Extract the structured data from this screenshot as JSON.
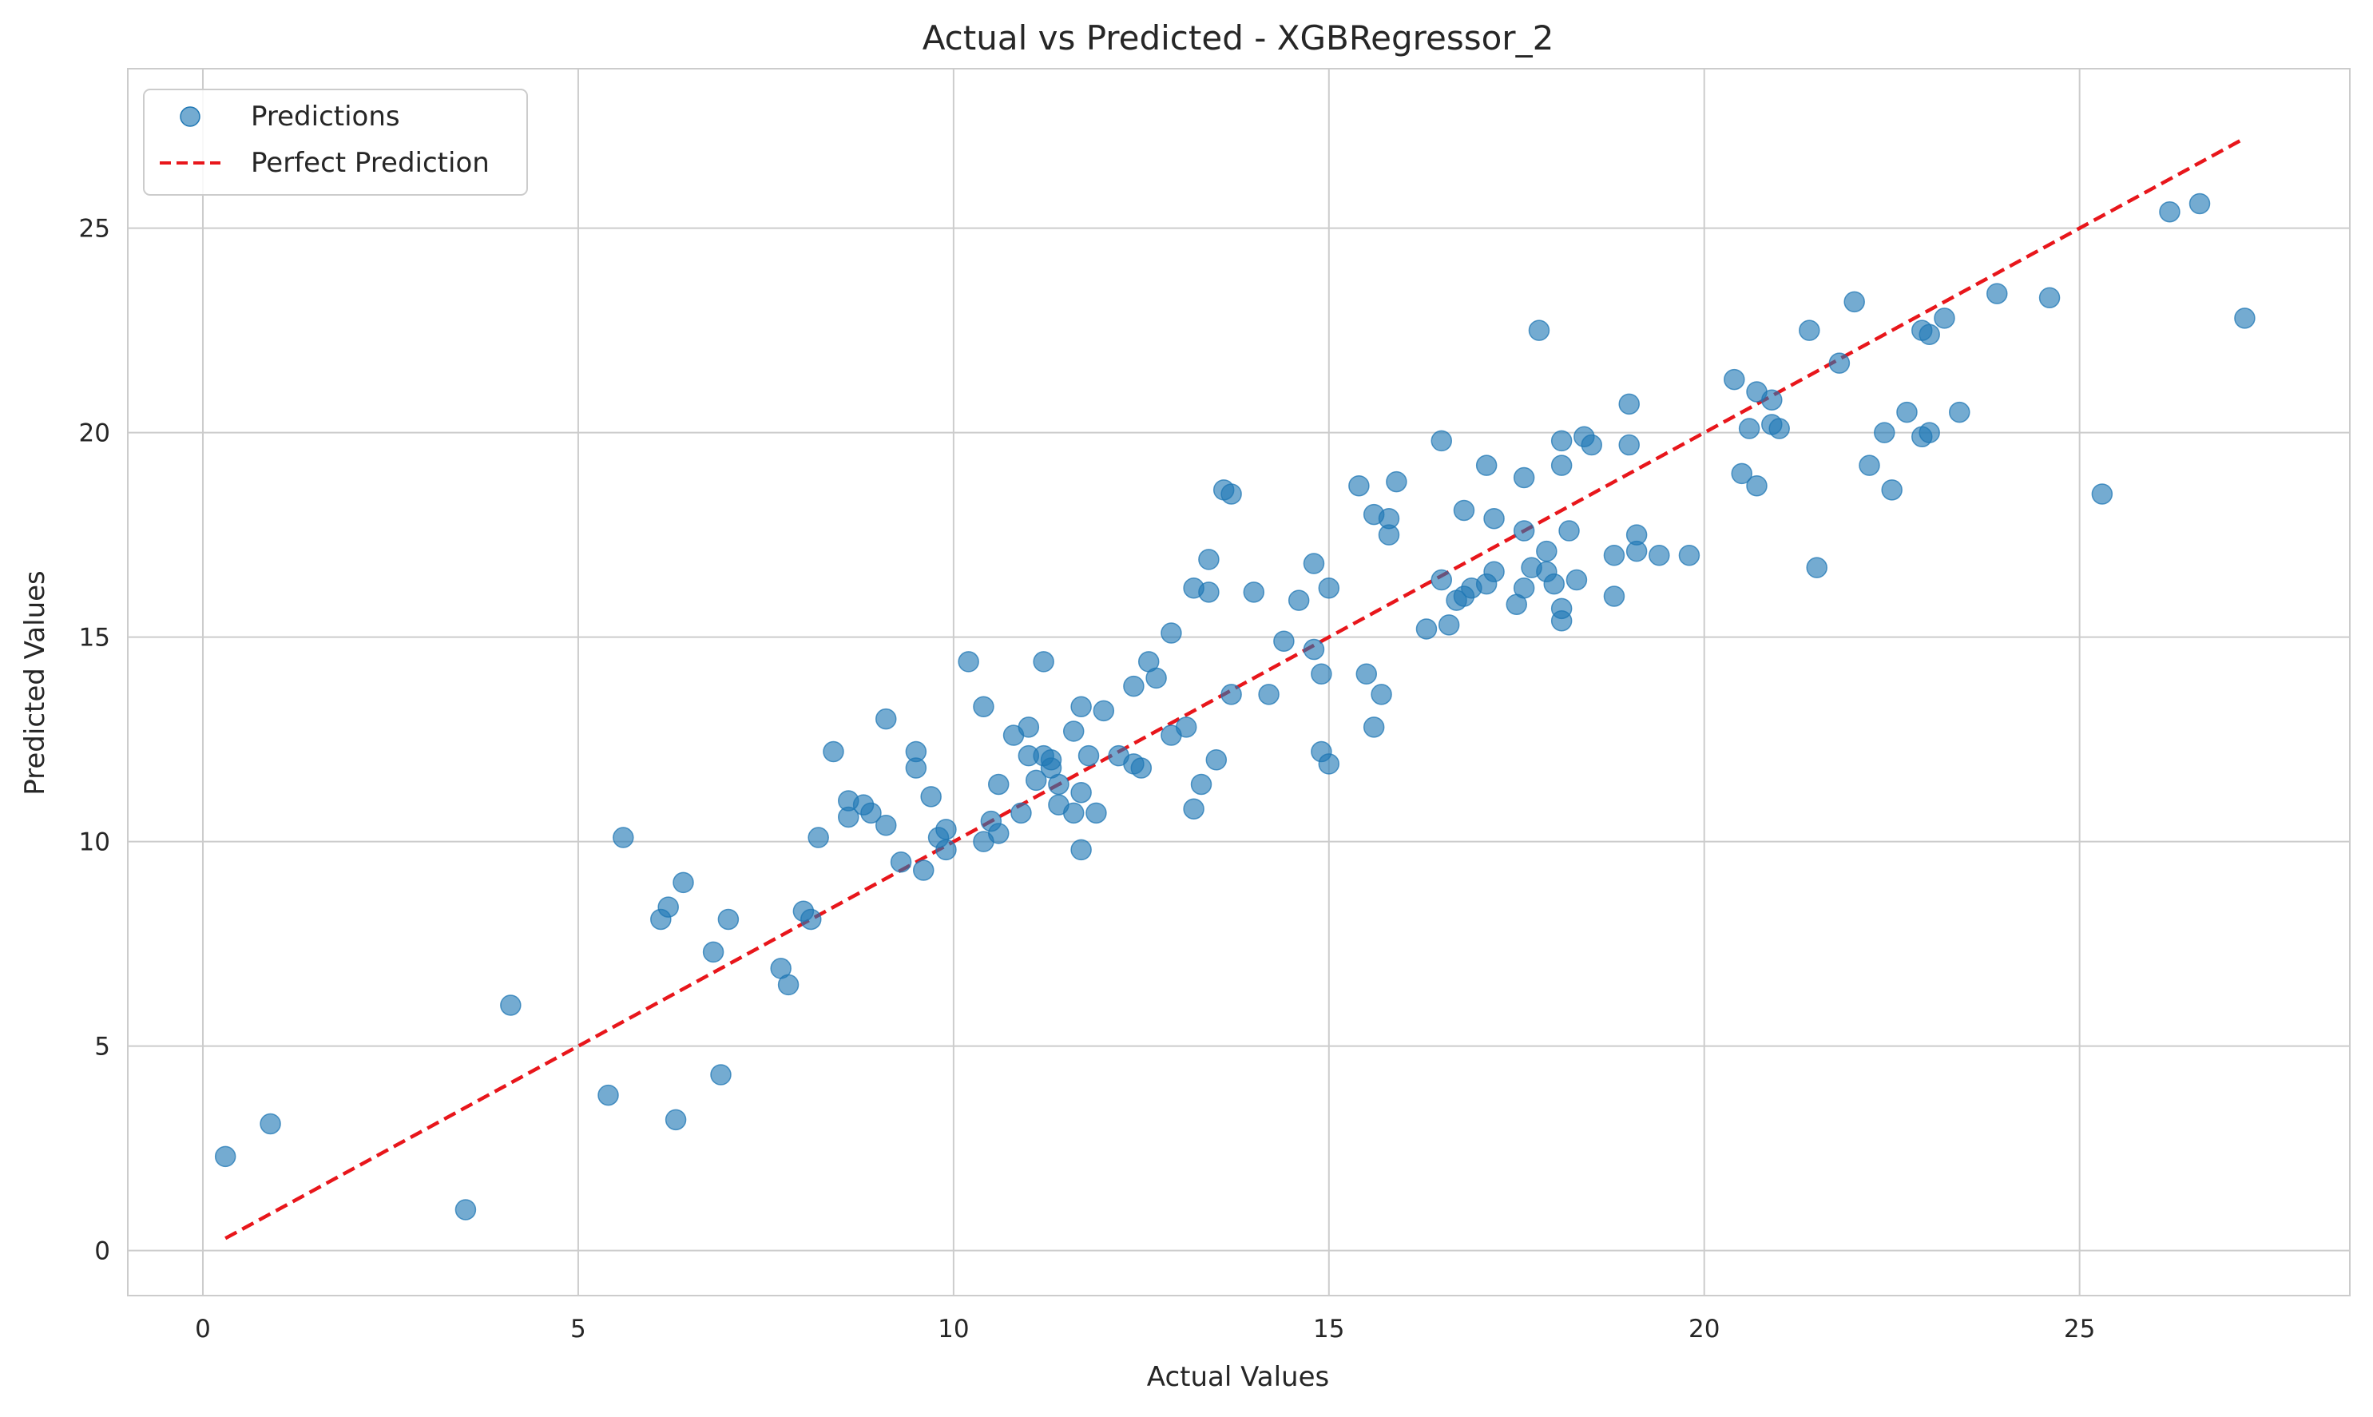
{
  "chart_data": {
    "type": "scatter",
    "title": "Actual vs Predicted - XGBRegressor_2",
    "xlabel": "Actual Values",
    "ylabel": "Predicted Values",
    "xlim": [
      -1.0,
      28.6
    ],
    "ylim": [
      -1.1,
      28.9
    ],
    "xticks": [
      0,
      5,
      10,
      15,
      20,
      25
    ],
    "yticks": [
      0,
      5,
      10,
      15,
      20,
      25
    ],
    "grid": true,
    "legend_position": "top-left",
    "colors": {
      "points": "#1f77b4",
      "line": "#e8161b",
      "grid": "#cccccc",
      "frame": "#cccccc"
    },
    "series": [
      {
        "name": "Predictions",
        "type": "scatter",
        "points": [
          [
            0.3,
            2.3
          ],
          [
            0.9,
            3.1
          ],
          [
            3.5,
            1.0
          ],
          [
            4.1,
            6.0
          ],
          [
            5.4,
            3.8
          ],
          [
            5.6,
            10.1
          ],
          [
            6.1,
            8.1
          ],
          [
            6.2,
            8.4
          ],
          [
            6.3,
            3.2
          ],
          [
            6.4,
            9.0
          ],
          [
            6.8,
            7.3
          ],
          [
            6.9,
            4.3
          ],
          [
            7.0,
            8.1
          ],
          [
            7.7,
            6.9
          ],
          [
            7.8,
            6.5
          ],
          [
            8.0,
            8.3
          ],
          [
            8.1,
            8.1
          ],
          [
            8.2,
            10.1
          ],
          [
            8.4,
            12.2
          ],
          [
            8.6,
            11.0
          ],
          [
            8.6,
            10.6
          ],
          [
            8.8,
            10.9
          ],
          [
            8.9,
            10.7
          ],
          [
            9.1,
            13.0
          ],
          [
            9.1,
            10.4
          ],
          [
            9.3,
            9.5
          ],
          [
            9.5,
            11.8
          ],
          [
            9.5,
            12.2
          ],
          [
            9.6,
            9.3
          ],
          [
            9.7,
            11.1
          ],
          [
            9.8,
            10.1
          ],
          [
            9.9,
            10.3
          ],
          [
            9.9,
            9.8
          ],
          [
            10.2,
            14.4
          ],
          [
            10.4,
            10.0
          ],
          [
            10.4,
            13.3
          ],
          [
            10.5,
            10.5
          ],
          [
            10.6,
            11.4
          ],
          [
            10.6,
            10.2
          ],
          [
            10.8,
            12.6
          ],
          [
            10.9,
            10.7
          ],
          [
            11.0,
            12.8
          ],
          [
            11.0,
            12.1
          ],
          [
            11.1,
            11.5
          ],
          [
            11.2,
            14.4
          ],
          [
            11.2,
            12.1
          ],
          [
            11.3,
            11.8
          ],
          [
            11.3,
            12.0
          ],
          [
            11.4,
            11.4
          ],
          [
            11.4,
            10.9
          ],
          [
            11.6,
            12.7
          ],
          [
            11.6,
            10.7
          ],
          [
            11.7,
            13.3
          ],
          [
            11.7,
            9.8
          ],
          [
            11.7,
            11.2
          ],
          [
            11.8,
            12.1
          ],
          [
            11.9,
            10.7
          ],
          [
            12.0,
            13.2
          ],
          [
            12.2,
            12.1
          ],
          [
            12.4,
            11.9
          ],
          [
            12.4,
            13.8
          ],
          [
            12.5,
            11.8
          ],
          [
            12.6,
            14.4
          ],
          [
            12.7,
            14.0
          ],
          [
            12.9,
            15.1
          ],
          [
            12.9,
            12.6
          ],
          [
            13.1,
            12.8
          ],
          [
            13.2,
            10.8
          ],
          [
            13.2,
            16.2
          ],
          [
            13.3,
            11.4
          ],
          [
            13.4,
            16.9
          ],
          [
            13.4,
            16.1
          ],
          [
            13.5,
            12.0
          ],
          [
            13.6,
            18.6
          ],
          [
            13.7,
            18.5
          ],
          [
            13.7,
            13.6
          ],
          [
            14.0,
            16.1
          ],
          [
            14.2,
            13.6
          ],
          [
            14.4,
            14.9
          ],
          [
            14.6,
            15.9
          ],
          [
            14.8,
            16.8
          ],
          [
            14.8,
            14.7
          ],
          [
            14.9,
            14.1
          ],
          [
            14.9,
            12.2
          ],
          [
            15.0,
            16.2
          ],
          [
            15.0,
            11.9
          ],
          [
            15.4,
            18.7
          ],
          [
            15.5,
            14.1
          ],
          [
            15.6,
            18.0
          ],
          [
            15.6,
            12.8
          ],
          [
            15.7,
            13.6
          ],
          [
            15.8,
            17.9
          ],
          [
            15.8,
            17.5
          ],
          [
            15.9,
            18.8
          ],
          [
            16.3,
            15.2
          ],
          [
            16.5,
            19.8
          ],
          [
            16.5,
            16.4
          ],
          [
            16.6,
            15.3
          ],
          [
            16.7,
            15.9
          ],
          [
            16.8,
            16.0
          ],
          [
            16.8,
            18.1
          ],
          [
            16.9,
            16.2
          ],
          [
            17.1,
            19.2
          ],
          [
            17.1,
            16.3
          ],
          [
            17.2,
            17.9
          ],
          [
            17.2,
            16.6
          ],
          [
            17.5,
            15.8
          ],
          [
            17.6,
            18.9
          ],
          [
            17.6,
            17.6
          ],
          [
            17.6,
            16.2
          ],
          [
            17.7,
            16.7
          ],
          [
            17.8,
            22.5
          ],
          [
            17.9,
            17.1
          ],
          [
            17.9,
            16.6
          ],
          [
            18.0,
            16.3
          ],
          [
            18.1,
            15.4
          ],
          [
            18.1,
            19.8
          ],
          [
            18.1,
            19.2
          ],
          [
            18.1,
            15.7
          ],
          [
            18.2,
            17.6
          ],
          [
            18.3,
            16.4
          ],
          [
            18.4,
            19.9
          ],
          [
            18.5,
            19.7
          ],
          [
            18.8,
            17.0
          ],
          [
            18.8,
            16.0
          ],
          [
            19.0,
            20.7
          ],
          [
            19.0,
            19.7
          ],
          [
            19.1,
            17.1
          ],
          [
            19.1,
            17.5
          ],
          [
            19.4,
            17.0
          ],
          [
            19.8,
            17.0
          ],
          [
            20.4,
            21.3
          ],
          [
            20.5,
            19.0
          ],
          [
            20.6,
            20.1
          ],
          [
            20.7,
            21.0
          ],
          [
            20.7,
            18.7
          ],
          [
            20.9,
            20.8
          ],
          [
            20.9,
            20.2
          ],
          [
            21.0,
            20.1
          ],
          [
            21.4,
            22.5
          ],
          [
            21.5,
            16.7
          ],
          [
            21.8,
            21.7
          ],
          [
            22.0,
            23.2
          ],
          [
            22.2,
            19.2
          ],
          [
            22.4,
            20.0
          ],
          [
            22.5,
            18.6
          ],
          [
            22.7,
            20.5
          ],
          [
            22.9,
            19.9
          ],
          [
            22.9,
            22.5
          ],
          [
            23.0,
            22.4
          ],
          [
            23.0,
            20.0
          ],
          [
            23.2,
            22.8
          ],
          [
            23.4,
            20.5
          ],
          [
            23.9,
            23.4
          ],
          [
            24.6,
            23.3
          ],
          [
            25.3,
            18.5
          ],
          [
            26.2,
            25.4
          ],
          [
            26.6,
            25.6
          ],
          [
            27.2,
            22.8
          ]
        ]
      },
      {
        "name": "Perfect Prediction",
        "type": "line",
        "style": "dashed",
        "points": [
          [
            0.3,
            0.3
          ],
          [
            27.2,
            27.2
          ]
        ]
      }
    ]
  }
}
